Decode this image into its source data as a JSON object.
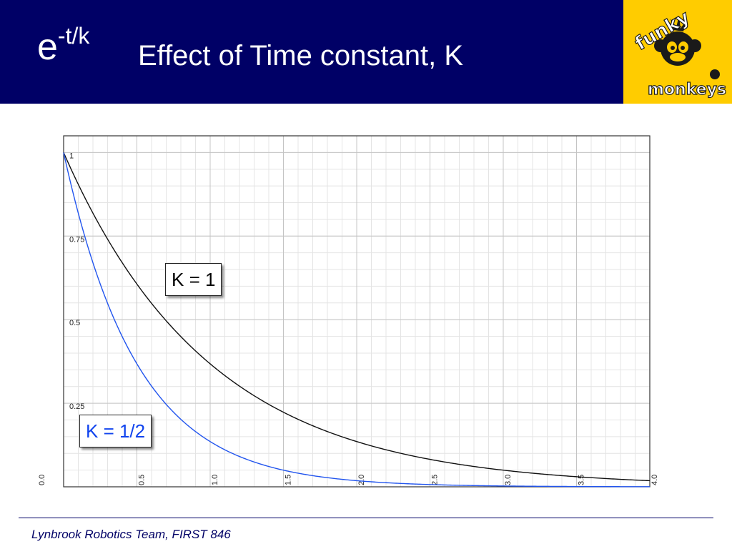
{
  "header": {
    "formula_base": "e",
    "formula_exponent": "-t/k",
    "title": "Effect of Time constant, K",
    "logo_text_top": "funky",
    "logo_text_bottom": "monkeys"
  },
  "colors": {
    "header_bg": "#000066",
    "logo_bg": "#ffcc00",
    "series_k1": "#111111",
    "series_k_half": "#2255ee"
  },
  "chart_data": {
    "type": "line",
    "function": "e^(-t/k)",
    "xlim": [
      0,
      4.0
    ],
    "ylim": [
      0,
      1.05
    ],
    "x_ticks": [
      "0.0",
      "0.5",
      "1.0",
      "1.5",
      "2.0",
      "2.5",
      "3.0",
      "3.5",
      "4.0"
    ],
    "y_ticks": [
      "1",
      "0.75",
      "0.5",
      "0.25"
    ],
    "grid": true,
    "series": [
      {
        "name": "K = 1",
        "k": 1,
        "color": "#111111",
        "x": [
          0,
          0.25,
          0.5,
          0.75,
          1.0,
          1.25,
          1.5,
          1.75,
          2.0,
          2.25,
          2.5,
          2.75,
          3.0,
          3.25,
          3.5,
          3.75,
          4.0
        ],
        "y": [
          1.0,
          0.779,
          0.607,
          0.472,
          0.368,
          0.287,
          0.223,
          0.174,
          0.135,
          0.105,
          0.082,
          0.064,
          0.05,
          0.039,
          0.03,
          0.024,
          0.018
        ]
      },
      {
        "name": "K = 1/2",
        "k": 0.5,
        "color": "#2255ee",
        "x": [
          0,
          0.25,
          0.5,
          0.75,
          1.0,
          1.25,
          1.5,
          1.75,
          2.0,
          2.25,
          2.5,
          2.75,
          3.0,
          3.25,
          3.5,
          3.75,
          4.0
        ],
        "y": [
          1.0,
          0.607,
          0.368,
          0.223,
          0.135,
          0.082,
          0.05,
          0.03,
          0.018,
          0.011,
          0.007,
          0.004,
          0.002,
          0.002,
          0.001,
          0.001,
          0.0
        ]
      }
    ]
  },
  "footer": {
    "text": "Lynbrook Robotics Team, FIRST 846"
  }
}
